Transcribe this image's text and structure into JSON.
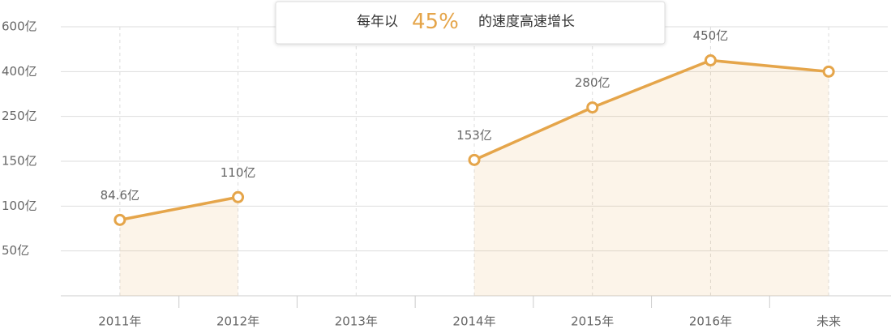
{
  "chart_data": {
    "type": "line",
    "annotation": {
      "before": "每年以",
      "highlight": "45%",
      "after": "的速度高速增长"
    },
    "categories": [
      "2011年",
      "2012年",
      "2013年",
      "2014年",
      "2015年",
      "2016年",
      "未来"
    ],
    "values": [
      84.6,
      110,
      null,
      153,
      280,
      450,
      400
    ],
    "value_labels": [
      "84.6亿",
      "110亿",
      null,
      "153亿",
      "280亿",
      "450亿",
      null
    ],
    "color": "#e5a54a",
    "ylim": [
      0,
      600
    ],
    "yticks": [
      {
        "value": 50,
        "label": "50亿"
      },
      {
        "value": 100,
        "label": "100亿"
      },
      {
        "value": 150,
        "label": "150亿"
      },
      {
        "value": 250,
        "label": "250亿"
      },
      {
        "value": 400,
        "label": "400亿"
      },
      {
        "value": 600,
        "label": "600亿"
      }
    ],
    "grid": true
  }
}
